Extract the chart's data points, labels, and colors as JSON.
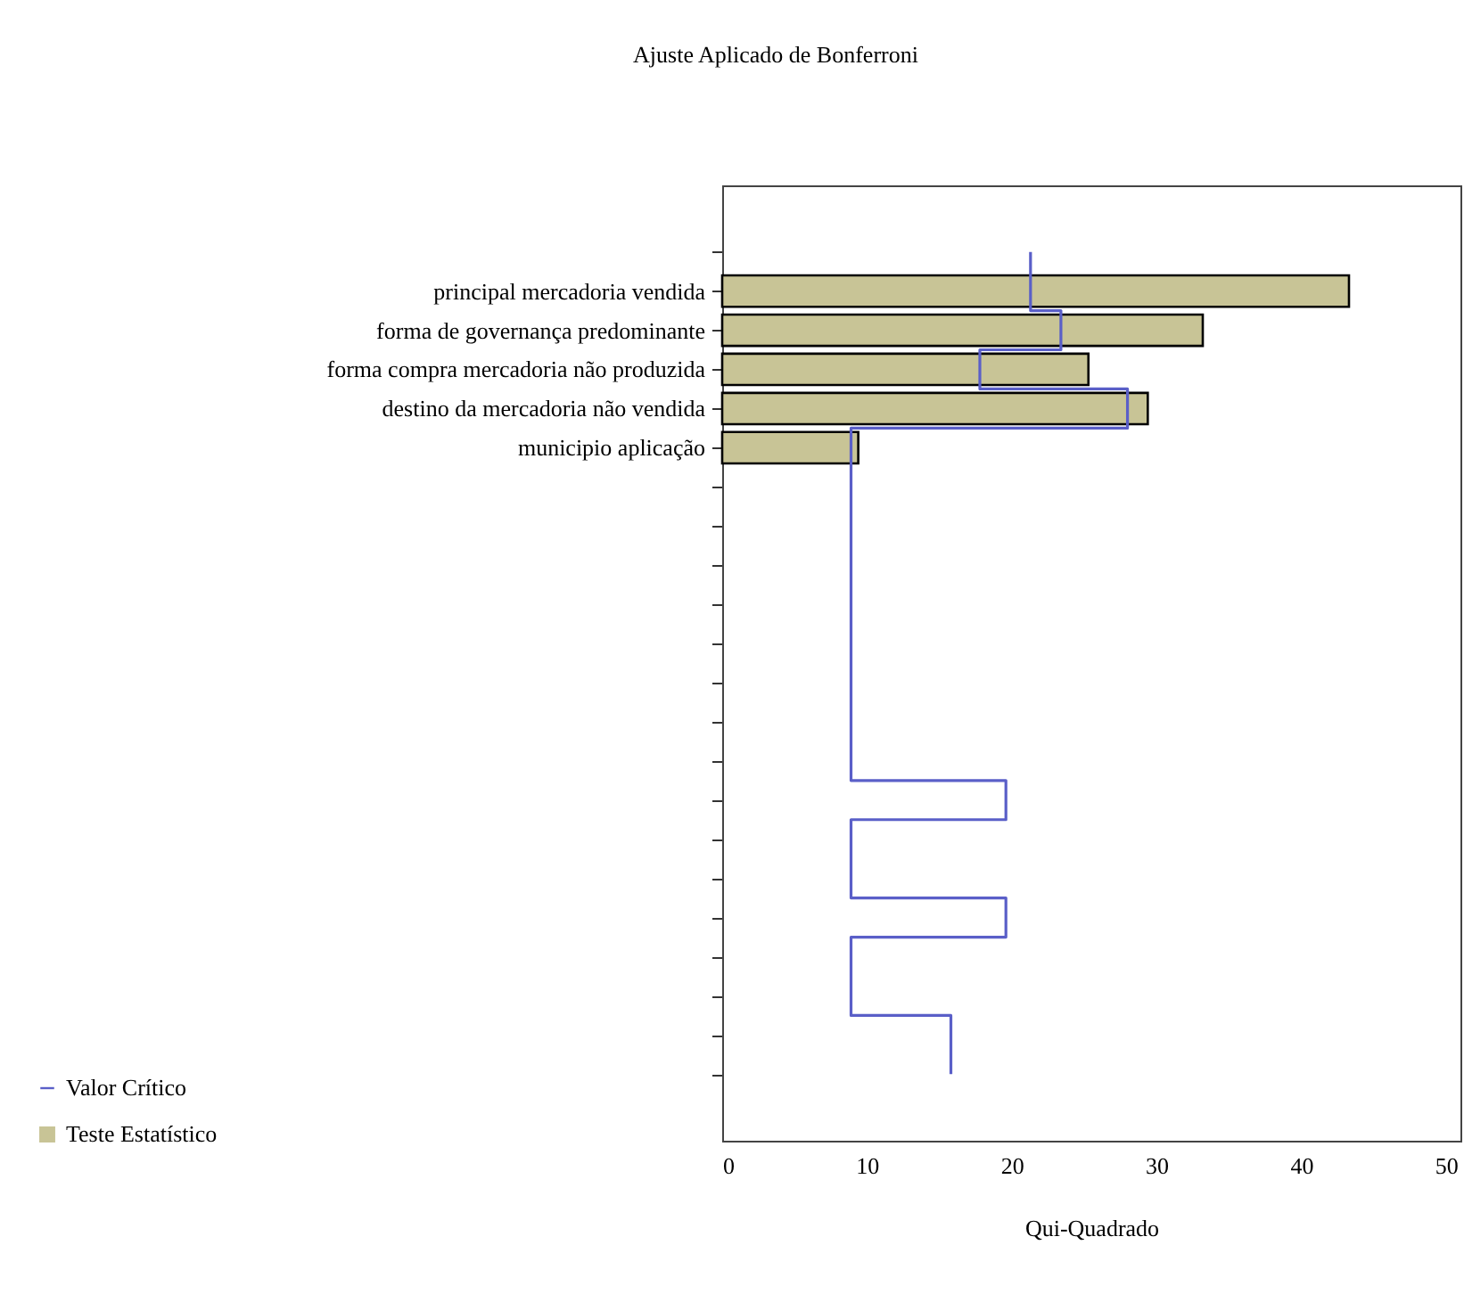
{
  "chart_data": {
    "type": "bar",
    "orientation": "horizontal",
    "title": "Ajuste Aplicado de Bonferroni",
    "xlabel": "Qui-Quadrado",
    "categories": [
      null,
      "principal mercadoria vendida",
      "forma de governança predominante",
      "forma compra mercadoria não produzida",
      "destino da mercadoria não vendida",
      "municipio aplicação",
      null,
      null,
      null,
      null,
      null,
      null,
      null,
      null,
      null,
      null,
      null,
      null,
      null,
      null,
      null,
      null
    ],
    "series": [
      {
        "name": "Valor Crítico",
        "type": "step",
        "color": "#5a5fc8",
        "values": [
          21.3,
          21.3,
          23.4,
          17.8,
          28.0,
          8.9,
          8.9,
          8.9,
          8.9,
          8.9,
          8.9,
          8.9,
          8.9,
          8.9,
          19.6,
          8.9,
          8.9,
          19.6,
          8.9,
          8.9,
          15.8,
          15.8
        ]
      },
      {
        "name": "Teste Estatístico",
        "color": "#c8c496",
        "values": [
          null,
          43.3,
          33.2,
          25.3,
          29.4,
          9.4,
          null,
          null,
          null,
          null,
          null,
          null,
          null,
          null,
          null,
          null,
          null,
          null,
          null,
          null,
          null,
          null
        ]
      }
    ],
    "xlim": [
      0,
      51
    ],
    "xticks": [
      0,
      10,
      20,
      30,
      40,
      50
    ],
    "grid": false,
    "legend": "bottom left"
  }
}
